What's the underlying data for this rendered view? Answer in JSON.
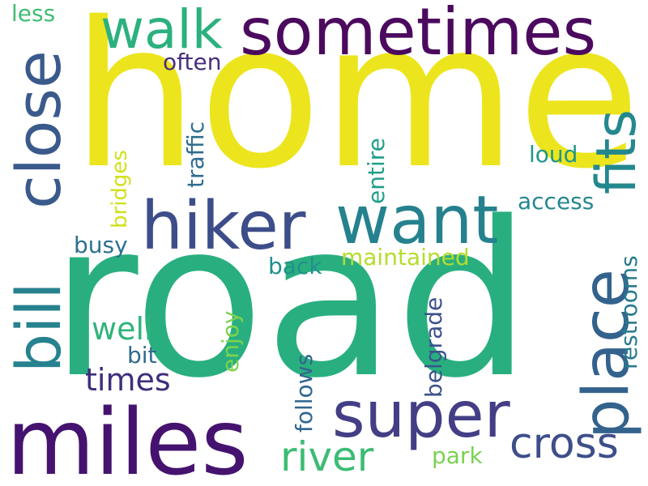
{
  "words": {
    "home": {
      "text": "home",
      "color": "#ece51d"
    },
    "road": {
      "text": "road",
      "color": "#29af7f"
    },
    "miles": {
      "text": "miles",
      "color": "#45136f"
    },
    "sometimes": {
      "text": "sometimes",
      "color": "#4b0a5e"
    },
    "hiker": {
      "text": "hiker",
      "color": "#3d4d8a"
    },
    "want": {
      "text": "want",
      "color": "#26818e"
    },
    "super": {
      "text": "super",
      "color": "#433e85"
    },
    "walk": {
      "text": "walk",
      "color": "#2cb17e"
    },
    "close": {
      "text": "close",
      "color": "#3a5a8c"
    },
    "bill": {
      "text": "bill",
      "color": "#26828e"
    },
    "fits": {
      "text": "fits",
      "color": "#23888e"
    },
    "place": {
      "text": "place",
      "color": "#33638d"
    },
    "cross": {
      "text": "cross",
      "color": "#3d4e8a"
    },
    "river": {
      "text": "river",
      "color": "#3cbc74"
    },
    "times": {
      "text": "times",
      "color": "#3f2e7b"
    },
    "well": {
      "text": "well",
      "color": "#30b47c"
    },
    "access": {
      "text": "access",
      "color": "#24878e"
    },
    "loud": {
      "text": "loud",
      "color": "#1f978b"
    },
    "maintained": {
      "text": "maintained",
      "color": "#b4dd2c"
    },
    "busy": {
      "text": "busy",
      "color": "#2c718e"
    },
    "back": {
      "text": "back",
      "color": "#21908d"
    },
    "often": {
      "text": "often",
      "color": "#472e7c"
    },
    "less": {
      "text": "less",
      "color": "#3fbc73"
    },
    "traffic": {
      "text": "traffic",
      "color": "#2f6c8e"
    },
    "bridges": {
      "text": "bridges",
      "color": "#d0e11c"
    },
    "entire": {
      "text": "entire",
      "color": "#1f9e89"
    },
    "enjoy": {
      "text": "enjoy",
      "color": "#7ed34f"
    },
    "bit": {
      "text": "bit",
      "color": "#306a8e"
    },
    "follows": {
      "text": "follows",
      "color": "#31668e"
    },
    "belgrade": {
      "text": "belgrade",
      "color": "#3b528b"
    },
    "restrooms": {
      "text": "restrooms",
      "color": "#297a8e"
    },
    "park": {
      "text": "park",
      "color": "#7ad151"
    }
  }
}
